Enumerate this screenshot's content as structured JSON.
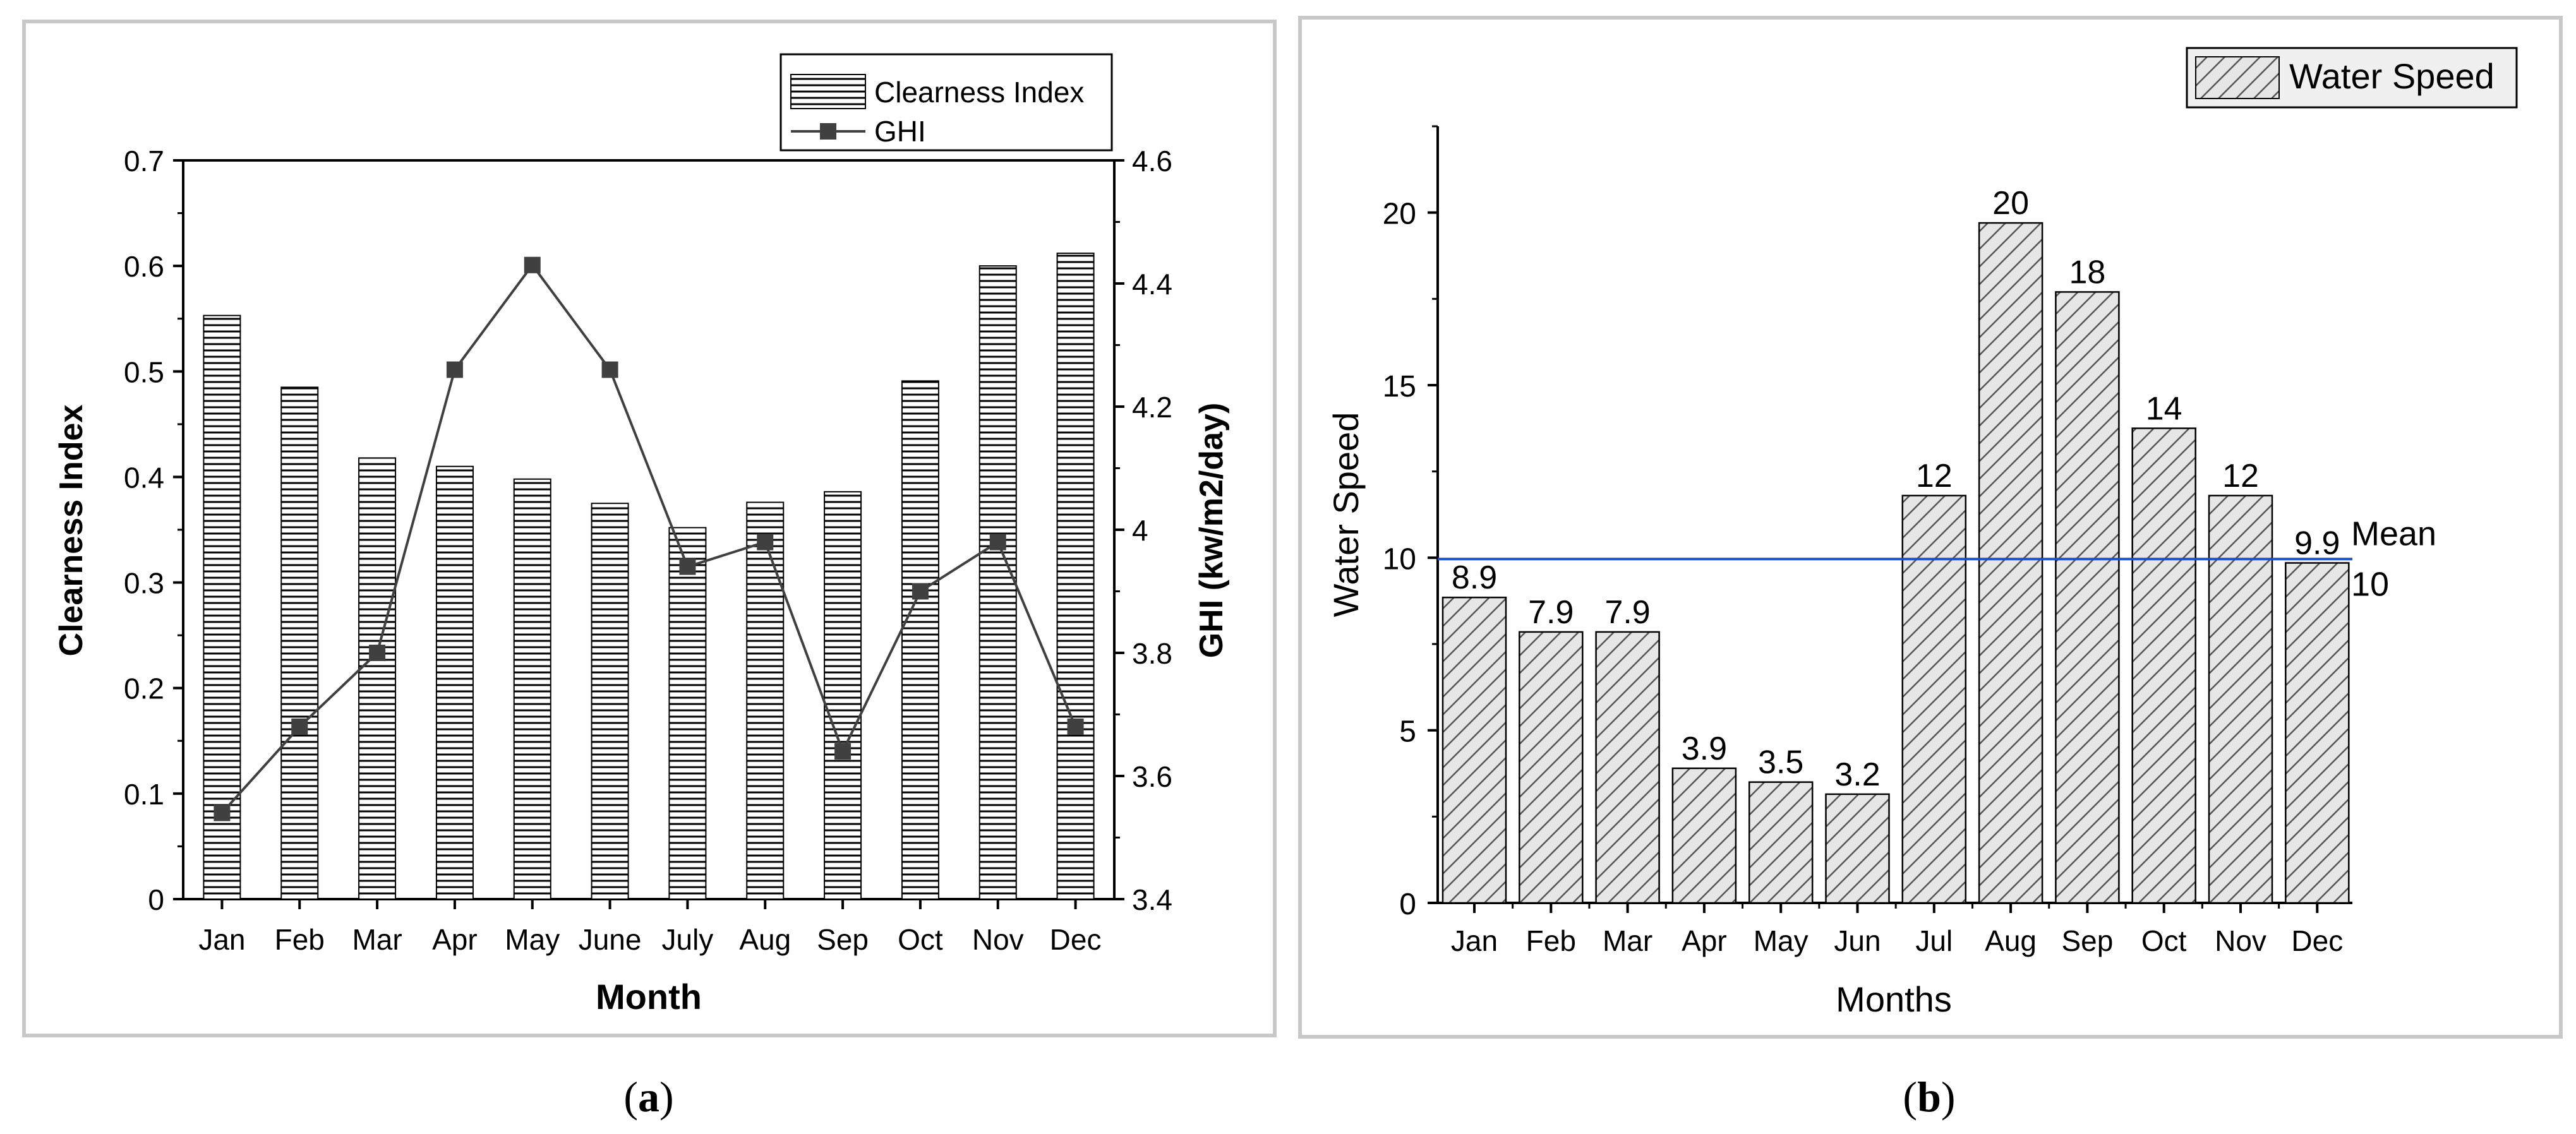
{
  "colors": {
    "panel_border": "#c8c8c8",
    "axis": "#000000",
    "bar_a_fill": "#ffffff",
    "bar_a_hatch": "#000000",
    "line_ghi": "#404040",
    "bar_b_fill": "#e6e6e6",
    "bar_b_hatch": "#555555",
    "mean_line": "#1f4fbf"
  },
  "captions": {
    "a": "a",
    "b": "b"
  },
  "chart_data": [
    {
      "type": "bar",
      "panel": "a",
      "xlabel": "Month",
      "ylabel": "Clearness Index",
      "y2label": "GHI (kw/m2/day)",
      "categories": [
        "Jan",
        "Feb",
        "Mar",
        "Apr",
        "May",
        "June",
        "July",
        "Aug",
        "Sep",
        "Oct",
        "Nov",
        "Dec"
      ],
      "ylim": [
        0,
        0.7
      ],
      "yticks": [
        "0",
        "0.1",
        "0.2",
        "0.3",
        "0.4",
        "0.5",
        "0.6",
        "0.7"
      ],
      "y2lim": [
        3.4,
        4.6
      ],
      "y2ticks": [
        "3.4",
        "3.6",
        "3.8",
        "4",
        "4.2",
        "4.4",
        "4.6"
      ],
      "legend_position": "top-right",
      "series": [
        {
          "name": "Clearness Index",
          "kind": "bar",
          "axis": "left",
          "values": [
            0.553,
            0.485,
            0.418,
            0.41,
            0.398,
            0.375,
            0.352,
            0.376,
            0.386,
            0.491,
            0.6,
            0.612
          ]
        },
        {
          "name": "GHI",
          "kind": "line",
          "axis": "right",
          "values": [
            3.54,
            3.68,
            3.8,
            4.26,
            4.43,
            4.26,
            3.94,
            3.98,
            3.64,
            3.9,
            3.98,
            3.68
          ]
        }
      ]
    },
    {
      "type": "bar",
      "panel": "b",
      "xlabel": "Months",
      "ylabel": "Water Speed",
      "categories": [
        "Jan",
        "Feb",
        "Mar",
        "Apr",
        "May",
        "Jun",
        "Jul",
        "Aug",
        "Sep",
        "Oct",
        "Nov",
        "Dec"
      ],
      "ylim": [
        0,
        22.5
      ],
      "yticks": [
        "0",
        "5",
        "10",
        "15",
        "20"
      ],
      "legend_position": "top-right",
      "series": [
        {
          "name": "Water Speed",
          "values": [
            8.9,
            7.9,
            7.9,
            3.9,
            3.5,
            3.2,
            12,
            20,
            18,
            14,
            12,
            9.9
          ],
          "labels": [
            "8.9",
            "7.9",
            "7.9",
            "3.9",
            "3.5",
            "3.2",
            "12",
            "20",
            "18",
            "14",
            "12",
            "9.9"
          ],
          "bar_heights": [
            8.85,
            7.85,
            7.85,
            3.9,
            3.5,
            3.15,
            11.8,
            19.7,
            17.7,
            13.75,
            11.8,
            9.85
          ]
        }
      ],
      "mean_line": {
        "value": 10,
        "label": "Mean",
        "value_label": "10"
      }
    }
  ]
}
